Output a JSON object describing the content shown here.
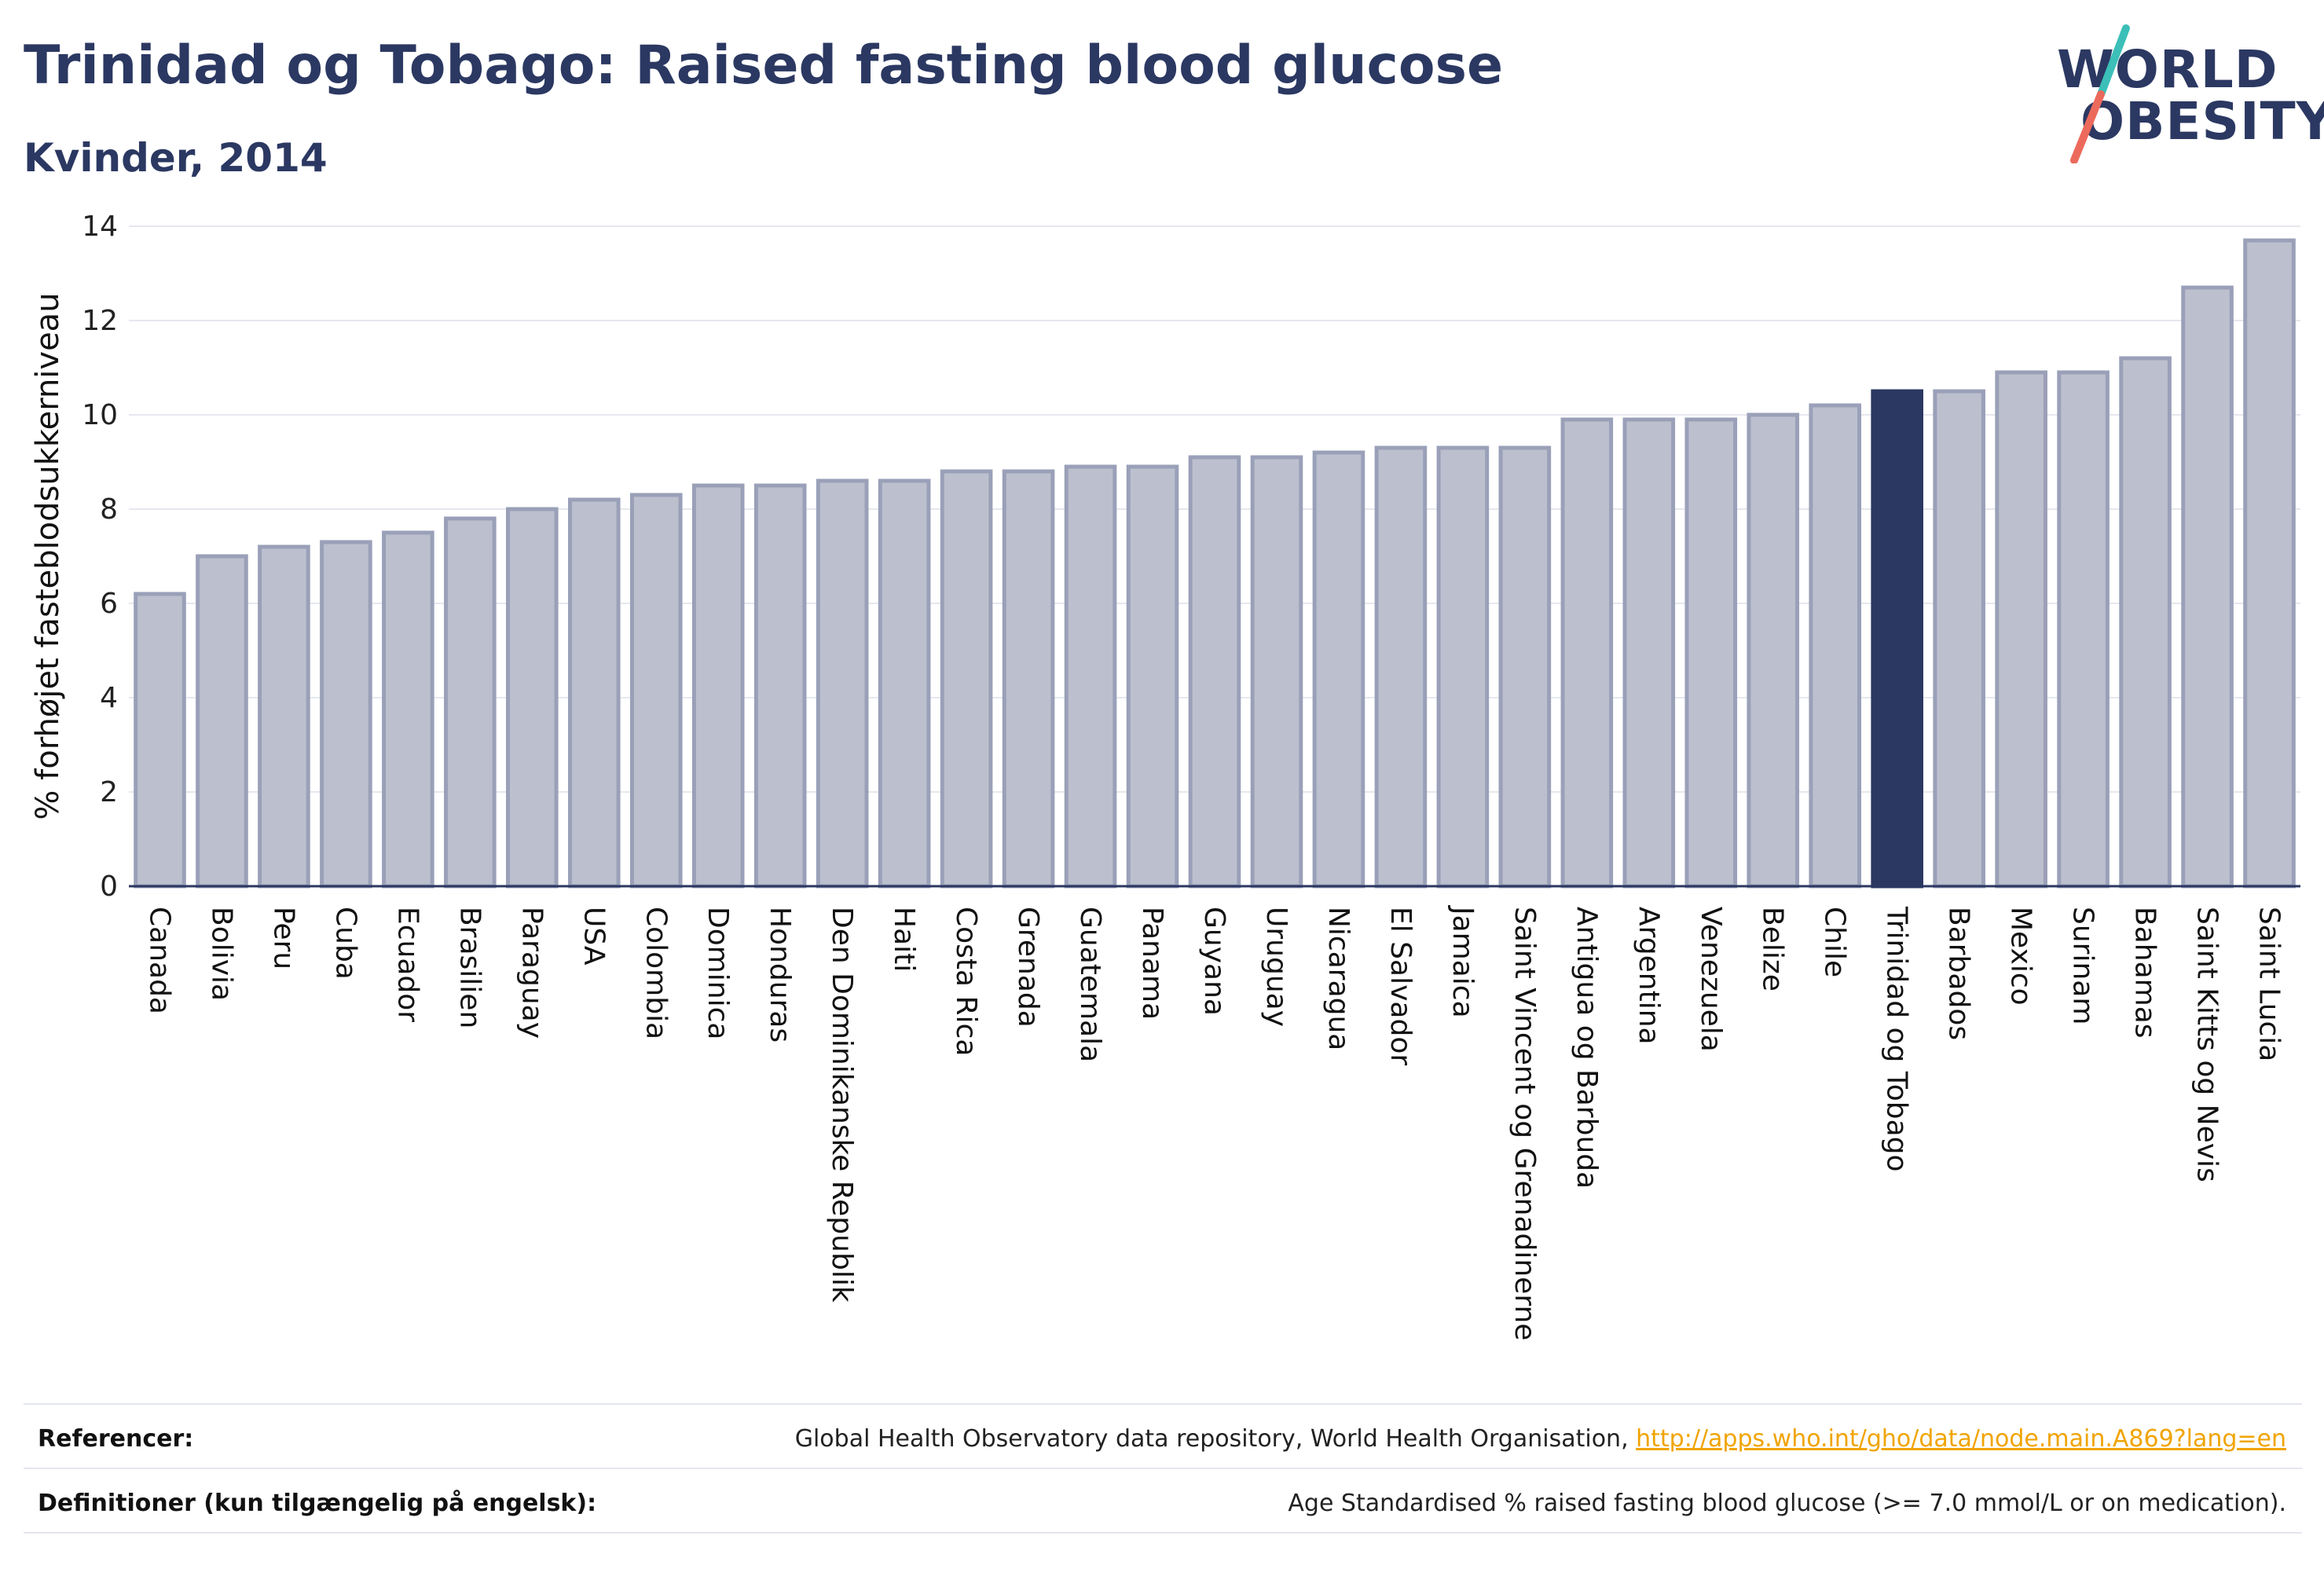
{
  "header": {
    "title": "Trinidad og Tobago: Raised fasting blood glucose",
    "subtitle": "Kvinder, 2014"
  },
  "logo": {
    "line1": "WORLD",
    "line2": "OBESITY",
    "colors": {
      "text": "#2b3862",
      "teal": "#3bbfb8",
      "coral": "#ec6a5c"
    }
  },
  "chart_data": {
    "type": "bar",
    "ylabel": "% forhøjet fasteblodsukkerniveau",
    "ylim": [
      0,
      14
    ],
    "yticks": [
      0,
      2,
      4,
      6,
      8,
      10,
      12,
      14
    ],
    "grid": true,
    "highlight": "Trinidad og Tobago",
    "colors": {
      "bar": "#bcc0ce",
      "bar_edge": "#9aa0b8",
      "highlight": "#2b3862",
      "grid": "#e6e8ef",
      "axis": "#2b3862"
    },
    "categories": [
      "Canada",
      "Bolivia",
      "Peru",
      "Cuba",
      "Ecuador",
      "Brasilien",
      "Paraguay",
      "USA",
      "Colombia",
      "Dominica",
      "Honduras",
      "Den Dominikanske Republik",
      "Haiti",
      "Costa Rica",
      "Grenada",
      "Guatemala",
      "Panama",
      "Guyana",
      "Uruguay",
      "Nicaragua",
      "El Salvador",
      "Jamaica",
      "Saint Vincent og Grenadinerne",
      "Antigua og Barbuda",
      "Argentina",
      "Venezuela",
      "Belize",
      "Chile",
      "Trinidad og Tobago",
      "Barbados",
      "Mexico",
      "Surinam",
      "Bahamas",
      "Saint Kitts og Nevis",
      "Saint Lucia"
    ],
    "values": [
      6.2,
      7.0,
      7.2,
      7.3,
      7.5,
      7.8,
      8.0,
      8.2,
      8.3,
      8.5,
      8.5,
      8.6,
      8.6,
      8.8,
      8.8,
      8.9,
      8.9,
      9.1,
      9.1,
      9.2,
      9.3,
      9.3,
      9.3,
      9.9,
      9.9,
      9.9,
      10.0,
      10.2,
      10.5,
      10.5,
      10.9,
      10.9,
      11.2,
      12.7,
      13.7
    ]
  },
  "footer": {
    "references_label": "Referencer:",
    "references_text": "Global Health Observatory data repository, World Health Organisation, ",
    "references_link": "http://apps.who.int/gho/data/node.main.A869?lang=en",
    "definitions_label": "Definitioner (kun tilgængelig på engelsk):",
    "definitions_text": "Age Standardised % raised fasting blood glucose (>= 7.0 mmol/L or on medication)."
  }
}
